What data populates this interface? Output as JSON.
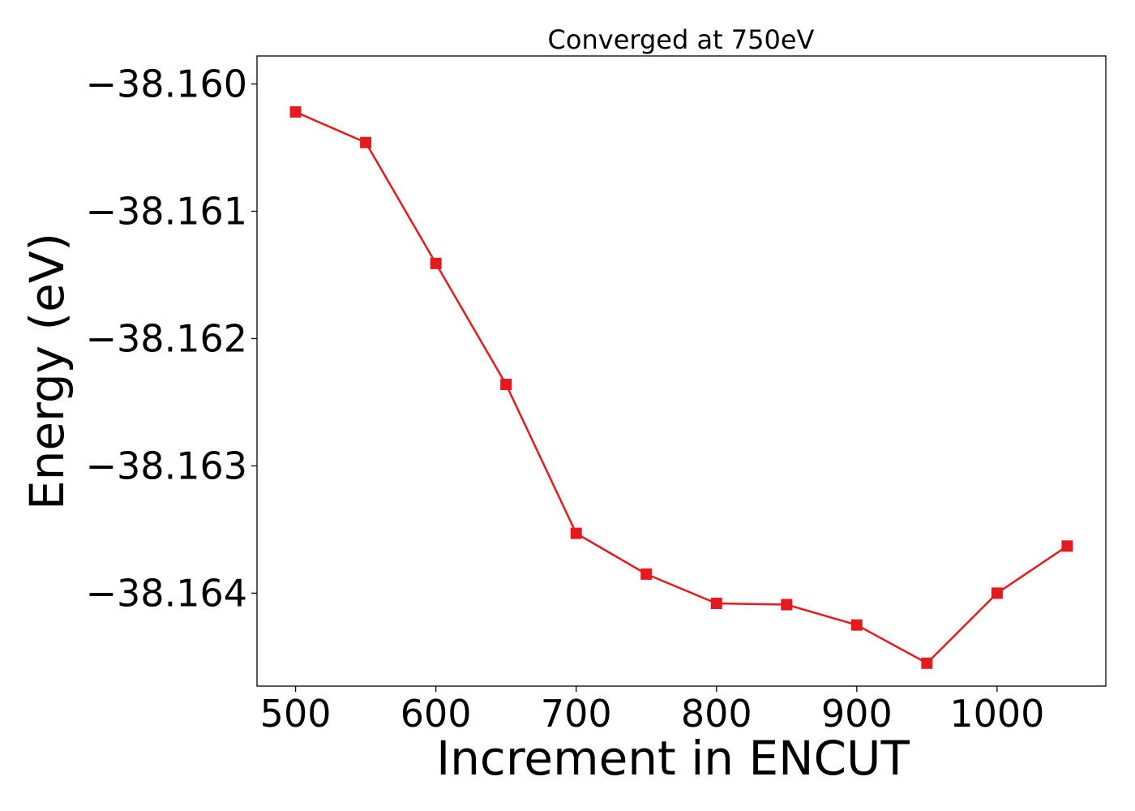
{
  "chart_data": {
    "type": "line",
    "title": "Converged at 750eV",
    "xlabel": "Increment in ENCUT",
    "ylabel": "Energy (eV)",
    "xlim": [
      472.5,
      1077.5
    ],
    "ylim": [
      -38.16473,
      -38.15978
    ],
    "xticks": [
      500,
      600,
      700,
      800,
      900,
      1000
    ],
    "xtick_labels": [
      "500",
      "600",
      "700",
      "800",
      "900",
      "1000"
    ],
    "yticks": [
      -38.16,
      -38.161,
      -38.162,
      -38.163,
      -38.164
    ],
    "ytick_labels": [
      "−38.160",
      "−38.161",
      "−38.162",
      "−38.163",
      "−38.164"
    ],
    "grid": false,
    "series": [
      {
        "color": "#e41a1c",
        "marker": "square",
        "x": [
          500,
          550,
          600,
          650,
          700,
          750,
          800,
          850,
          900,
          950,
          1000,
          1050
        ],
        "y": [
          -38.16022,
          -38.16046,
          -38.16141,
          -38.16236,
          -38.16353,
          -38.16385,
          -38.16408,
          -38.16409,
          -38.16425,
          -38.16455,
          -38.164,
          -38.16363
        ]
      }
    ]
  }
}
